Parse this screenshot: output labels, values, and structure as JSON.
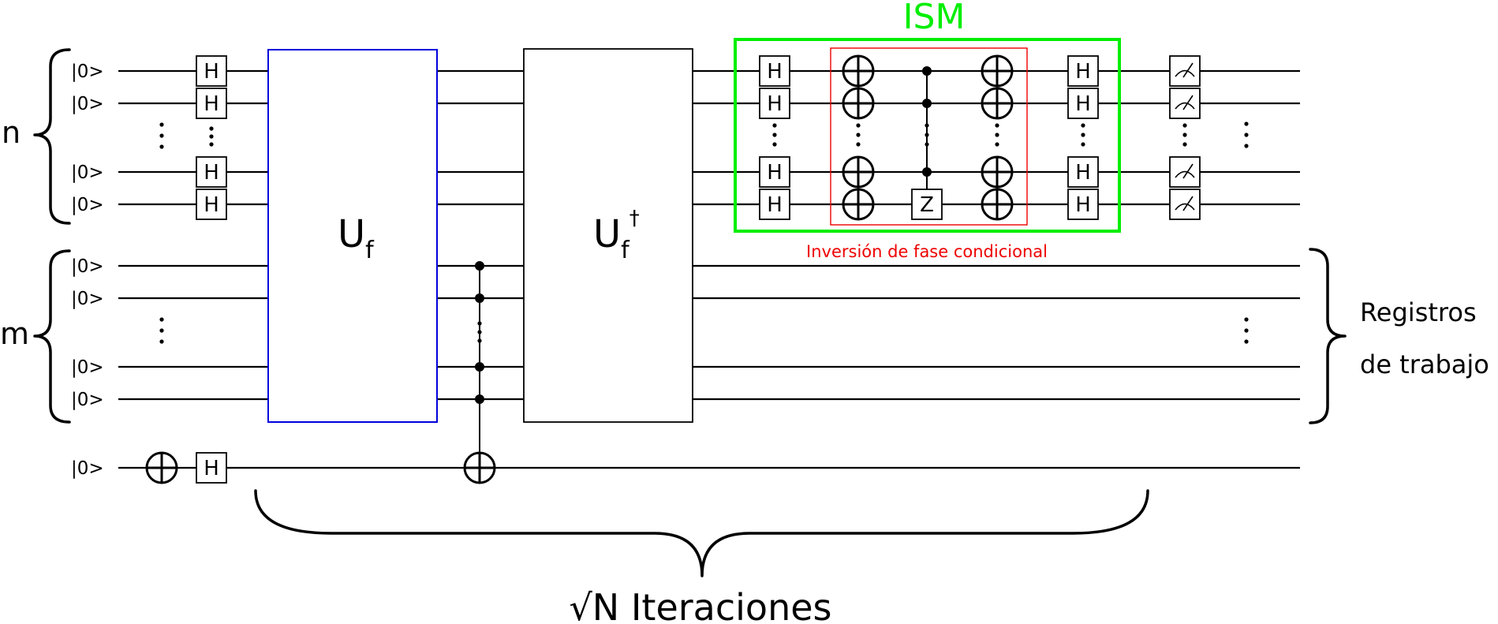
{
  "registers": {
    "n_label": "n",
    "m_label": "m",
    "qubit_initial_state": "|0>",
    "work_registers_line1": "Registros",
    "work_registers_line2": "de trabajo"
  },
  "gates": {
    "hadamard": "H",
    "oracle": "U",
    "oracle_subscript": "f",
    "oracle_dagger_symbol": "†",
    "z_gate": "Z"
  },
  "blocks": {
    "ism_title": "ISM",
    "phase_inversion_label": "Inversión de fase condicional"
  },
  "iterations_label": "√N Iteraciones",
  "colors": {
    "ism_box": "#00ee00",
    "ism_title": "#00ee00",
    "phase_box": "#ee0000",
    "phase_label": "#ee0000",
    "oracle_box": "#0000dd",
    "wire": "#000000"
  }
}
